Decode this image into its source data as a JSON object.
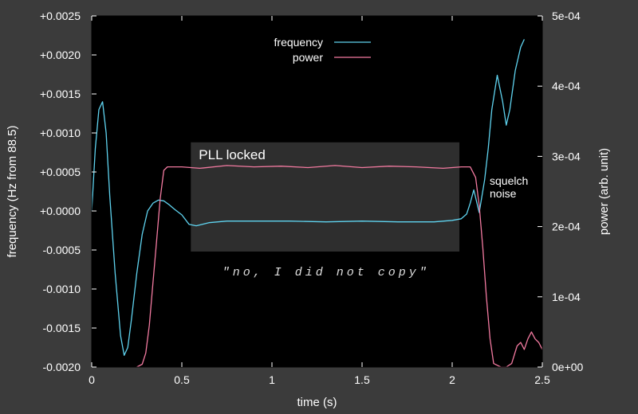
{
  "chart_data": {
    "type": "line",
    "xlabel": "time (s)",
    "ylabel": "frequency (Hz from 88.5)",
    "y2label": "power (arb. unit)",
    "xlim": [
      0,
      2.5
    ],
    "ylim": [
      -0.002,
      0.0025
    ],
    "y2lim": [
      0,
      0.0005
    ],
    "x_ticks": [
      "0",
      "0.5",
      "1",
      "1.5",
      "2",
      "2.5"
    ],
    "y_ticks": [
      "+0.0025",
      "+0.0020",
      "+0.0015",
      "+0.0010",
      "+0.0005",
      "+0.0000",
      "-0.0005",
      "-0.0010",
      "-0.0015",
      "-0.0020"
    ],
    "y2_ticks": [
      "5e-04",
      "4e-04",
      "3e-04",
      "2e-04",
      "1e-04",
      "0e+00"
    ],
    "legend_position": "top-center",
    "grid": false,
    "series": [
      {
        "name": "frequency",
        "axis": "left",
        "color": "#5fd3ef",
        "x": [
          0.0,
          0.02,
          0.04,
          0.06,
          0.08,
          0.1,
          0.13,
          0.16,
          0.18,
          0.2,
          0.22,
          0.25,
          0.28,
          0.31,
          0.34,
          0.37,
          0.4,
          0.43,
          0.46,
          0.5,
          0.54,
          0.58,
          0.65,
          0.75,
          0.9,
          1.1,
          1.3,
          1.5,
          1.7,
          1.9,
          2.0,
          2.05,
          2.08,
          2.1,
          2.12,
          2.15,
          2.18,
          2.2,
          2.22,
          2.25,
          2.28,
          2.3,
          2.32,
          2.35,
          2.38,
          2.4
        ],
        "y": [
          0.0,
          0.0008,
          0.0013,
          0.0014,
          0.001,
          0.0002,
          -0.0008,
          -0.0016,
          -0.00185,
          -0.00175,
          -0.0014,
          -0.0008,
          -0.0003,
          0.0,
          0.0001,
          0.00014,
          0.00013,
          8e-05,
          2e-05,
          -5e-05,
          -0.00017,
          -0.00019,
          -0.00015,
          -0.00013,
          -0.00013,
          -0.00013,
          -0.00014,
          -0.00013,
          -0.00014,
          -0.00014,
          -0.00012,
          -0.0001,
          -4e-05,
          0.0001,
          0.00027,
          -2e-05,
          0.0004,
          0.0008,
          0.0013,
          0.00174,
          0.0014,
          0.0011,
          0.0013,
          0.0018,
          0.0021,
          0.0022
        ]
      },
      {
        "name": "power",
        "axis": "right",
        "color": "#f27aa0",
        "x": [
          0.25,
          0.28,
          0.3,
          0.32,
          0.34,
          0.36,
          0.38,
          0.4,
          0.42,
          0.5,
          0.6,
          0.75,
          0.9,
          1.05,
          1.2,
          1.35,
          1.5,
          1.65,
          1.8,
          1.95,
          2.05,
          2.1,
          2.13,
          2.15,
          2.17,
          2.19,
          2.21,
          2.23,
          2.27,
          2.3,
          2.33,
          2.36,
          2.38,
          2.4,
          2.42,
          2.44,
          2.46,
          2.48,
          2.5
        ],
        "y": [
          0.0,
          4e-06,
          2e-05,
          6e-05,
          0.00012,
          0.00018,
          0.00024,
          0.00028,
          0.000285,
          0.000285,
          0.000283,
          0.000287,
          0.000285,
          0.000286,
          0.000284,
          0.000287,
          0.000284,
          0.000286,
          0.000285,
          0.000283,
          0.000285,
          0.000285,
          0.00027,
          0.00023,
          0.00017,
          0.0001,
          4e-05,
          5e-06,
          0.0,
          0.0,
          5e-06,
          3e-05,
          3.5e-05,
          2.5e-05,
          4e-05,
          5e-05,
          4e-05,
          3.5e-05,
          2.5e-05
        ]
      }
    ],
    "annotations": {
      "box_title": "PLL locked",
      "squelch_line1": "squelch",
      "squelch_line2": "noise",
      "quote": "\"no, I did not copy\""
    }
  }
}
